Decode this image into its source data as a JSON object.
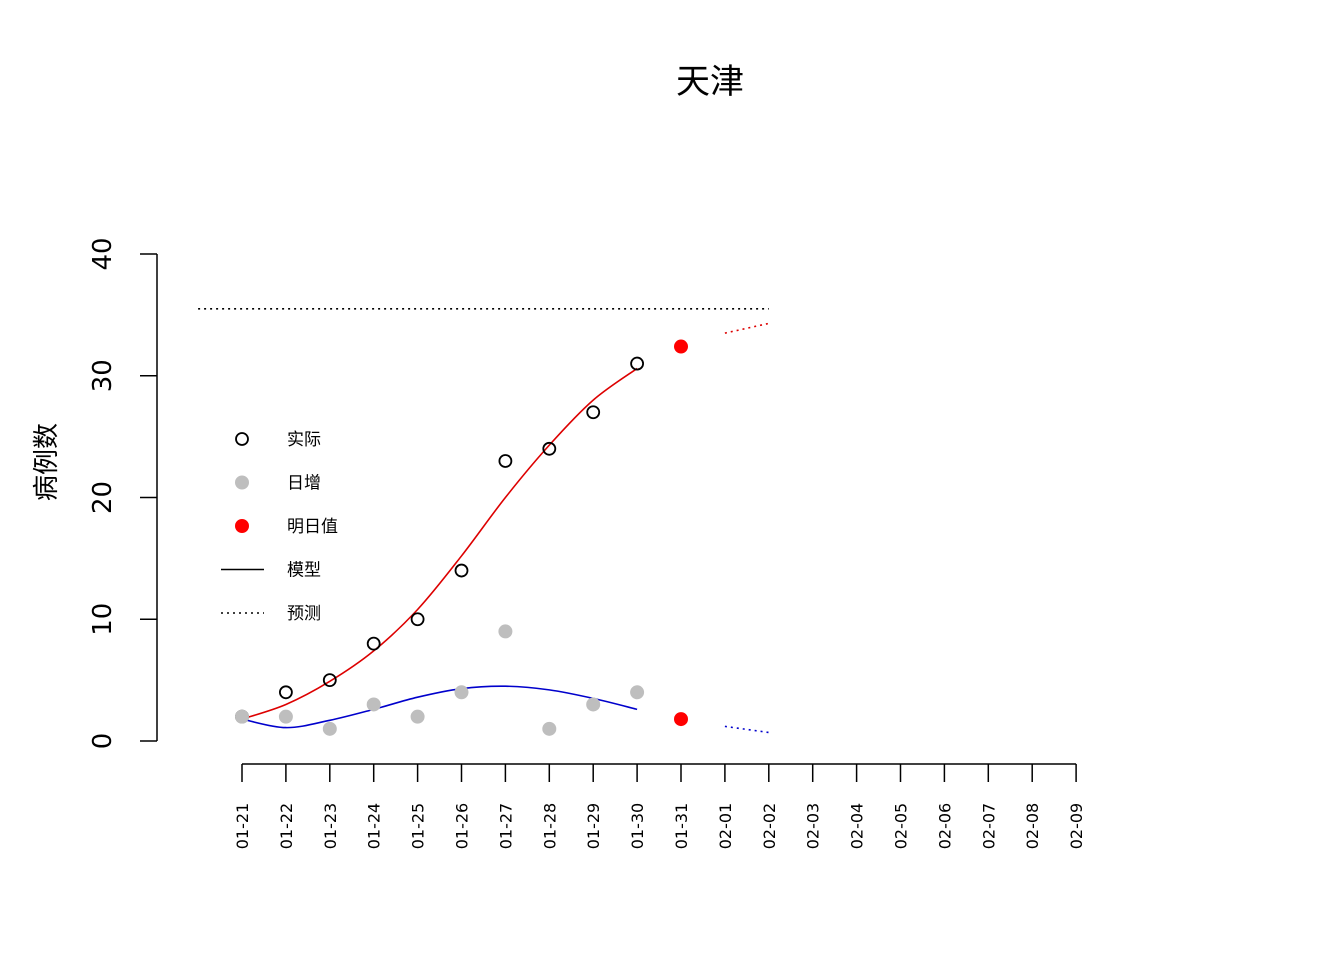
{
  "chart_data": {
    "type": "line",
    "title": "天津",
    "xlabel": "",
    "ylabel": "病例数",
    "ylim": [
      0,
      40
    ],
    "yticks": [
      "0",
      "10",
      "20",
      "30",
      "40"
    ],
    "categories": [
      "01-21",
      "01-22",
      "01-23",
      "01-24",
      "01-25",
      "01-26",
      "01-27",
      "01-28",
      "01-29",
      "01-30",
      "01-31",
      "02-01",
      "02-02",
      "02-03",
      "02-04",
      "02-05",
      "02-06",
      "02-07",
      "02-08",
      "02-09"
    ],
    "legend": {
      "position": "left",
      "items": [
        {
          "label": "实际",
          "symbol": "open-circle",
          "color": "#000000"
        },
        {
          "label": "日增",
          "symbol": "filled-circle",
          "color": "#bebebe"
        },
        {
          "label": "明日值",
          "symbol": "filled-circle",
          "color": "#ff0000"
        },
        {
          "label": "模型",
          "symbol": "solid-line",
          "color": "#000000"
        },
        {
          "label": "预测",
          "symbol": "dotted-line",
          "color": "#000000"
        }
      ]
    },
    "series": [
      {
        "name": "实际",
        "style": "open-circle",
        "color": "#000000",
        "x": [
          "01-21",
          "01-22",
          "01-23",
          "01-24",
          "01-25",
          "01-26",
          "01-27",
          "01-28",
          "01-29",
          "01-30"
        ],
        "values": [
          2,
          4,
          5,
          8,
          10,
          14,
          23,
          24,
          27,
          31
        ]
      },
      {
        "name": "日增",
        "style": "filled-circle",
        "color": "#bebebe",
        "x": [
          "01-21",
          "01-22",
          "01-23",
          "01-24",
          "01-25",
          "01-26",
          "01-27",
          "01-28",
          "01-29",
          "01-30"
        ],
        "values": [
          2,
          2,
          1,
          3,
          2,
          4,
          9,
          1,
          3,
          4
        ]
      },
      {
        "name": "明日值",
        "style": "filled-circle",
        "color": "#ff0000",
        "x": [
          "01-31",
          "01-31"
        ],
        "values": [
          32.4,
          1.8
        ]
      },
      {
        "name": "模型",
        "style": "solid-line",
        "color": "#dd0000",
        "x": [
          "01-21",
          "01-22",
          "01-23",
          "01-24",
          "01-25",
          "01-26",
          "01-27",
          "01-28",
          "01-29",
          "01-30"
        ],
        "values": [
          1.8,
          3.0,
          4.9,
          7.4,
          10.8,
          15.2,
          20.0,
          24.3,
          28.0,
          30.6
        ]
      },
      {
        "name": "模型",
        "style": "solid-line",
        "color": "#0000cc",
        "x": [
          "01-21",
          "01-22",
          "01-23",
          "01-24",
          "01-25",
          "01-26",
          "01-27",
          "01-28",
          "01-29",
          "01-30"
        ],
        "values": [
          1.8,
          1.1,
          1.7,
          2.6,
          3.6,
          4.3,
          4.5,
          4.2,
          3.5,
          2.6
        ]
      },
      {
        "name": "预测",
        "style": "dotted-line",
        "color": "#000000",
        "x": [
          "01-20",
          "02-02"
        ],
        "values": [
          35.5,
          35.5
        ]
      },
      {
        "name": "预测",
        "style": "dotted-line",
        "color": "#dd0000",
        "x": [
          "02-01",
          "02-02"
        ],
        "values": [
          33.5,
          34.3
        ]
      },
      {
        "name": "预测",
        "style": "dotted-line",
        "color": "#0000cc",
        "x": [
          "02-01",
          "02-02"
        ],
        "values": [
          1.2,
          0.7
        ]
      }
    ]
  }
}
